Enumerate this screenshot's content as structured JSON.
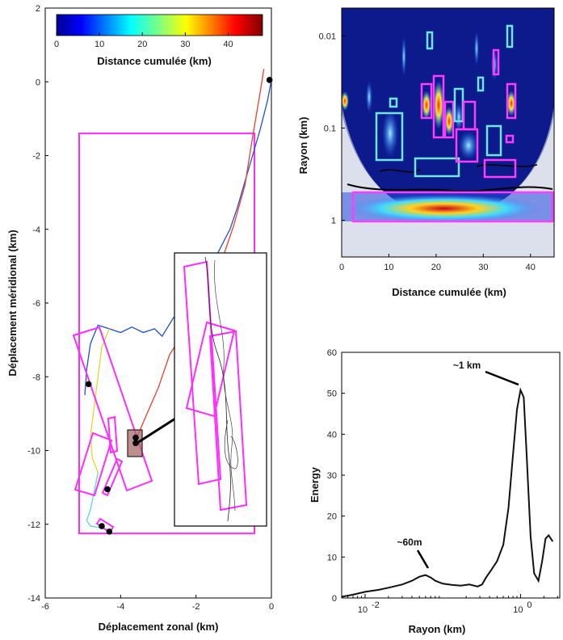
{
  "chart_data": [
    {
      "type": "line",
      "panel": "trajectory",
      "xlabel": "Déplacement zonal (km)",
      "ylabel": "Déplacement méridional (km)",
      "xlim": [
        -6,
        0
      ],
      "ylim": [
        -14,
        2
      ],
      "xticks": [
        "-6",
        "-4",
        "-2",
        "0"
      ],
      "yticks": [
        "2",
        "0",
        "-2",
        "-4",
        "-6",
        "-8",
        "-10",
        "-12",
        "-14"
      ],
      "colorbar": {
        "label": "Distance cumulée (km)",
        "range": [
          0,
          48
        ],
        "ticks": [
          "0",
          "10",
          "20",
          "30",
          "40"
        ]
      },
      "series": [
        {
          "color": "#1f4fd6",
          "x": [
            0.0,
            -0.1,
            -0.3,
            -0.5,
            -0.7,
            -0.9,
            -1.1,
            -1.4,
            -1.8,
            -2.2,
            -2.6,
            -2.9,
            -3.1,
            -3.4,
            -3.7,
            -4.0,
            -4.3,
            -4.6,
            -4.8,
            -4.9,
            -4.95
          ],
          "y": [
            0.05,
            -0.5,
            -1.3,
            -2.0,
            -2.7,
            -3.4,
            -4.0,
            -4.6,
            -5.3,
            -6.0,
            -6.4,
            -6.9,
            -6.7,
            -6.8,
            -6.65,
            -6.8,
            -6.7,
            -6.6,
            -7.1,
            -7.8,
            -8.5
          ]
        },
        {
          "color": "#e8402a",
          "x": [
            -0.2,
            -0.3,
            -0.5,
            -0.7,
            -1.0,
            -1.3,
            -1.7,
            -2.2,
            -2.7,
            -3.0,
            -3.3,
            -3.55
          ],
          "y": [
            0.35,
            -0.3,
            -1.5,
            -2.8,
            -3.9,
            -4.8,
            -5.8,
            -6.6,
            -7.4,
            -8.3,
            -9.0,
            -9.6
          ]
        },
        {
          "color": "#e0d62a",
          "x": [
            -4.3,
            -4.5,
            -4.6,
            -4.7,
            -4.8,
            -4.75,
            -4.6
          ],
          "y": [
            -6.7,
            -7.2,
            -8.0,
            -8.8,
            -9.6,
            -10.2,
            -10.6
          ]
        },
        {
          "color": "#5ad6d6",
          "x": [
            -4.6,
            -4.7,
            -4.8,
            -4.9,
            -4.8,
            -4.5,
            -4.3
          ],
          "y": [
            -10.6,
            -11.1,
            -11.6,
            -11.9,
            -12.05,
            -12.1,
            -12.15
          ]
        }
      ],
      "markers": [
        {
          "x": -0.05,
          "y": 0.05
        },
        {
          "x": -4.85,
          "y": -8.2
        },
        {
          "x": -3.6,
          "y": -9.65
        },
        {
          "x": -3.6,
          "y": -9.8
        },
        {
          "x": -4.35,
          "y": -11.05
        },
        {
          "x": -4.5,
          "y": -12.05
        },
        {
          "x": -4.3,
          "y": -12.2
        }
      ],
      "selection_box": {
        "x": [
          -5.1,
          -0.45
        ],
        "y": [
          -1.4,
          -12.25
        ]
      }
    },
    {
      "type": "heatmap",
      "panel": "wavelet",
      "xlabel": "Distance cumulée (km)",
      "ylabel": "Rayon (km)",
      "xlim": [
        0,
        45
      ],
      "xticks": [
        "0",
        "10",
        "20",
        "30",
        "40"
      ],
      "ylim": [
        0.005,
        2.5
      ],
      "yscale": "log",
      "yticks": [
        "0.01",
        "0.1",
        "1"
      ],
      "boxes": [
        {
          "color": "#6ee6ea",
          "x": [
            7,
            12
          ],
          "r": [
            0.065,
            0.35
          ]
        },
        {
          "color": "#6ee6ea",
          "x": [
            14,
            24
          ],
          "r": [
            0.33,
            0.55
          ]
        },
        {
          "color": "#ff3cff",
          "x": [
            19,
            21
          ],
          "r": [
            0.03,
            0.17
          ]
        },
        {
          "color": "#ff3cff",
          "x": [
            27,
            30
          ],
          "r": [
            0.055,
            0.13
          ]
        },
        {
          "color": "#ff3cff",
          "x": [
            29.5,
            34
          ],
          "r": [
            0.33,
            0.55
          ]
        },
        {
          "color": "#ff3cff",
          "x": [
            2,
            44.5
          ],
          "r": [
            0.75,
            2.0
          ]
        }
      ]
    },
    {
      "type": "line",
      "panel": "spectrum",
      "xlabel": "Rayon (km)",
      "ylabel": "Energy",
      "xscale": "log",
      "xlim": [
        0.005,
        3.2
      ],
      "xticks": [
        "10",
        "10"
      ],
      "xtick_exponents": [
        "-2",
        "0"
      ],
      "ylim": [
        0,
        60
      ],
      "yticks": [
        "0",
        "10",
        "20",
        "30",
        "40",
        "50",
        "60"
      ],
      "series": [
        {
          "color": "#111111",
          "x": [
            0.005,
            0.007,
            0.01,
            0.015,
            0.02,
            0.03,
            0.04,
            0.05,
            0.06,
            0.07,
            0.08,
            0.1,
            0.13,
            0.17,
            0.22,
            0.28,
            0.32,
            0.36,
            0.42,
            0.5,
            0.6,
            0.7,
            0.8,
            0.9,
            1.0,
            1.1,
            1.2,
            1.35,
            1.5,
            1.7,
            1.9,
            2.1,
            2.3,
            2.6
          ],
          "y": [
            0.3,
            0.8,
            1.5,
            2.0,
            2.5,
            3.3,
            4.2,
            5.2,
            5.6,
            5.0,
            4.2,
            3.5,
            3.2,
            3.0,
            3.3,
            2.8,
            3.3,
            5.0,
            6.8,
            9.0,
            13.0,
            22.0,
            35.0,
            46.0,
            50.8,
            49.0,
            35.0,
            15.0,
            6.0,
            4.2,
            9.0,
            14.5,
            15.3,
            13.8
          ]
        }
      ],
      "annotations": [
        "~1 km",
        "~60m"
      ]
    }
  ]
}
